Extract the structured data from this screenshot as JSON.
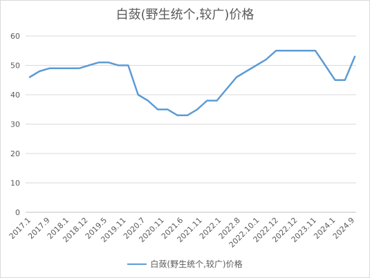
{
  "colors": {
    "series": "#5b9bd5",
    "grid": "#d9d9d9",
    "text": "#595959"
  },
  "chart_data": {
    "type": "line",
    "title": "白蔹(野生统个,较广)价格",
    "xlabel": "",
    "ylabel": "",
    "ylim": [
      0,
      60
    ],
    "yticks": [
      0,
      10,
      20,
      30,
      40,
      50,
      60
    ],
    "grid": "horizontal",
    "legend_position": "bottom",
    "x_tick_labels": [
      "2017.1",
      "2017.9",
      "2018.1",
      "2018.12",
      "2019.5",
      "2019.11",
      "2020.7",
      "2020.11",
      "2021.6",
      "2021.11",
      "2022.1",
      "2022.8",
      "2022.10.1",
      "2022.12",
      "2022.12",
      "2023.11",
      "2024.1",
      "2024.9"
    ],
    "series": [
      {
        "name": "白蔹(野生统个,较广)价格",
        "values": [
          46,
          48,
          49,
          49,
          49,
          49,
          50,
          51,
          51,
          50,
          50,
          40,
          38,
          35,
          35,
          33,
          33,
          35,
          38,
          38,
          42,
          46,
          48,
          50,
          52,
          55,
          55,
          55,
          55,
          55,
          50,
          45,
          45,
          53
        ]
      }
    ]
  }
}
